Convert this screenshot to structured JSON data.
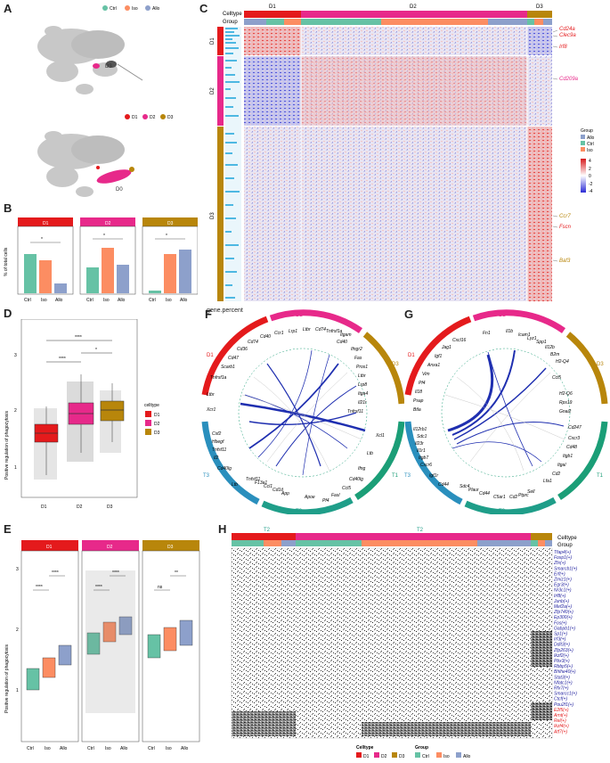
{
  "panels": {
    "A": "A",
    "B": "B",
    "C": "C",
    "D": "D",
    "E": "E",
    "F": "F",
    "G": "G",
    "H": "H"
  },
  "colors": {
    "D1": "#e41a1c",
    "D2": "#e7298a",
    "D3": "#b8860b",
    "Ctrl": "#66c2a5",
    "Iso": "#fc8d62",
    "Allo": "#8da0cb",
    "T1": "#1b9e77",
    "T2": "#1f9e89",
    "T3": "#2a8fbd"
  },
  "panelA": {
    "legend_top": [
      "Ctrl",
      "Iso",
      "Allo"
    ],
    "legend_bottom": [
      "D1",
      "D2",
      "D3"
    ],
    "label_d3": "D3",
    "label_d0": "D0"
  },
  "panelB": {
    "ylabel": "% of total cells",
    "groups": [
      "Ctrl",
      "Iso",
      "Allo"
    ],
    "sig": [
      "*",
      "*",
      "*",
      "*",
      "*",
      "*"
    ]
  },
  "panelC": {
    "headers": {
      "celltype": "Celltype",
      "group": "Group",
      "d1": "D1",
      "d2": "D2",
      "d3": "D3"
    },
    "row_labels": [
      "D1",
      "D2",
      "D3"
    ],
    "genes": [
      "Cd24a",
      "Clec9a",
      "Irf8",
      "Cd209a",
      "Ccr7",
      "Fscn",
      "Baf3"
    ],
    "legend_title": "Group",
    "legend_items": [
      "Allo",
      "Ctrl",
      "Iso"
    ],
    "scale": [
      "4",
      "2",
      "0",
      "-2",
      "-4"
    ],
    "gene_percent": "gene.percent"
  },
  "panelD": {
    "ylabel": "Positive regulation of phagocytosis",
    "legend_title": "celltype",
    "legend_items": [
      "D1",
      "D2",
      "D3"
    ],
    "sig": [
      "****",
      "****",
      "*"
    ],
    "yticks": [
      "3",
      "2",
      "1"
    ]
  },
  "panelE": {
    "ylabel": "Positive regulation of phagocytosis",
    "facets": [
      "D1",
      "D2",
      "D3"
    ],
    "xticks": [
      "Ctrl",
      "Iso",
      "Allo"
    ],
    "sig_d1": [
      "****",
      "****"
    ],
    "sig_d2": [
      "****",
      "****"
    ],
    "sig_d3": [
      "ns",
      "**"
    ],
    "yticks": [
      "3",
      "2",
      "1"
    ]
  },
  "panelF": {
    "sectors": [
      "D1",
      "D2",
      "D3",
      "T1",
      "T2",
      "T3"
    ],
    "genes_D1": [
      "Ltbr",
      "Xcr1",
      "Tnfrsf1a",
      "Scarb1",
      "Cd47",
      "Cd36",
      "Cd74",
      "Cd40",
      "Ccr1",
      "Lrp1"
    ],
    "genes_D2": [
      "Ltbr",
      "Cd74",
      "Tnfrsf1a",
      "Itgam",
      "Ifngr2",
      "Fas"
    ],
    "genes_D3": [
      "Cd40",
      "Pros1",
      "Ltbr",
      "Lrp8",
      "Itga4",
      "Il21r",
      "Tnfrsf11"
    ],
    "genes_T1": [
      "Xcl1",
      "Ltb",
      "Ifng",
      "Cd40lg",
      "Ccl5",
      "Fasl",
      "Pf4"
    ],
    "genes_T2": [
      "Apoe",
      "App",
      "Cd1d",
      "Ccl1",
      "F13a1",
      "Tnfsf11"
    ],
    "genes_T3": [
      "Csf2",
      "Hbegf",
      "Tnfsf11",
      "Il2",
      "Cd40lg",
      "Ltb"
    ]
  },
  "panelG": {
    "sectors": [
      "D1",
      "D2",
      "D3",
      "T1",
      "T2",
      "T3"
    ],
    "genes_D1": [
      "Btla",
      "Psap",
      "Il18",
      "Pf4",
      "Vim",
      "Anxa1",
      "Igf1",
      "Jag1"
    ],
    "genes_D2": [
      "Cxcl16",
      "Fn1",
      "Il1b",
      "Icam1",
      "Lyz1",
      "Spp1"
    ],
    "genes_D3": [
      "Il12b",
      "B2m",
      "H2-Q4",
      "Ccl5",
      "H2-Q6",
      "Rps19",
      "Gnai2"
    ],
    "genes_T1": [
      "Cd247",
      "Cxcr3",
      "Cd48",
      "Itgb1",
      "Itgal",
      "Cd2",
      "Lfa1"
    ],
    "genes_T2": [
      "Sell",
      "Ptprc",
      "Cd2",
      "C5ar1",
      "Cd44",
      "Plaur",
      "Sdc4"
    ],
    "genes_T3": [
      "Il12rb1",
      "Sdc1",
      "Il23r",
      "Il1r1",
      "Itgb7",
      "Cxcr6",
      "Igf1r",
      "Cd44"
    ]
  },
  "panelH": {
    "headers": {
      "celltype": "Celltype",
      "group": "Group",
      "t2a": "T2",
      "t2b": "T2"
    },
    "tfs": [
      "Tfap4(+)",
      "Foxp1(+)",
      "Zfx(+)",
      "Smarcb1(+)",
      "Erf(+)",
      "Zmiz1(+)",
      "Egr3(+)",
      "Nr3c1(+)",
      "Irf8(+)",
      "Junb(+)",
      "Mef2a(+)",
      "Zfp740(+)",
      "Ep300(+)",
      "Fos(+)",
      "Gabpb1(+)",
      "Sp1(+)",
      "Irf3(+)",
      "Ddit3(+)",
      "Zfp263(+)",
      "Ikzf2(+)",
      "Pbx3(+)",
      "Rbbp5(+)",
      "Bhlhe40(+)",
      "Stat3(+)",
      "Nfatc1(+)",
      "Rfx7(+)",
      "Smarcc1(+)",
      "Ctcf(+)",
      "Pou2f1(+)",
      "E2f5(+)",
      "Arnt(+)",
      "Rel(+)",
      "Ikzf4(+)",
      "Atf7(+)"
    ],
    "legend_celltype_title": "Celltype",
    "legend_group_title": "Group",
    "legend_celltype": [
      "D1",
      "D2",
      "D3"
    ],
    "legend_group": [
      "Ctrl",
      "Iso",
      "Allo"
    ]
  }
}
